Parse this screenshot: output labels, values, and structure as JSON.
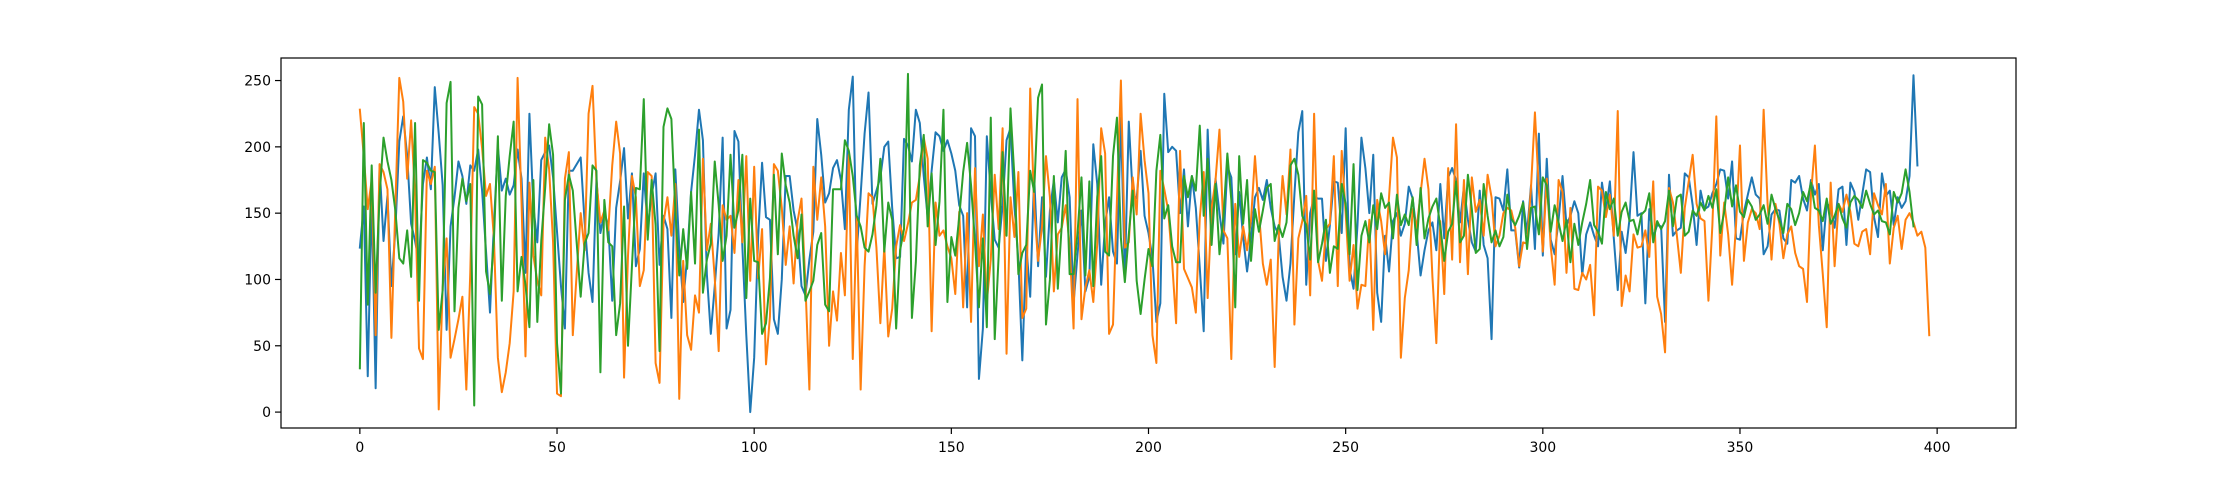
{
  "chart_data": {
    "type": "line",
    "title": "",
    "xlabel": "",
    "ylabel": "",
    "xlim": [
      -20,
      420
    ],
    "ylim": [
      -12,
      267
    ],
    "grid": false,
    "legend": "none",
    "x_ticks": [
      0,
      50,
      100,
      150,
      200,
      250,
      300,
      350,
      400
    ],
    "y_ticks": [
      0,
      50,
      100,
      150,
      200,
      250
    ],
    "x": {
      "start": 0,
      "end": 399,
      "step": 1
    },
    "series": [
      {
        "color": "#1f77b4",
        "values": [
          124,
          155,
          27,
          162,
          18,
          186,
          129,
          163,
          95,
          137,
          204,
          223,
          193,
          142,
          129,
          113,
          172,
          192,
          168,
          245,
          210,
          171,
          62,
          140,
          162,
          189,
          178,
          157,
          186,
          182,
          198,
          167,
          121,
          75,
          142,
          200,
          167,
          176,
          164,
          171,
          198,
          176,
          105,
          225,
          155,
          128,
          190,
          196,
          201,
          177,
          136,
          95,
          63,
          182,
          182,
          187,
          192,
          143,
          105,
          83,
          176,
          135,
          150,
          141,
          84,
          154,
          174,
          199,
          146,
          180,
          110,
          123,
          180,
          139,
          164,
          180,
          111,
          148,
          138,
          71,
          183,
          124,
          83,
          117,
          166,
          194,
          228,
          205,
          104,
          59,
          95,
          135,
          207,
          63,
          77,
          212,
          204,
          125,
          58,
          0,
          41,
          132,
          188,
          147,
          145,
          70,
          59,
          100,
          178,
          178,
          152,
          137,
          95,
          88,
          115,
          136,
          221,
          194,
          158,
          165,
          184,
          190,
          175,
          138,
          228,
          253,
          120,
          164,
          210,
          241,
          157,
          167,
          177,
          200,
          204,
          154,
          116,
          117,
          206,
          201,
          189,
          228,
          218,
          178,
          147,
          182,
          211,
          208,
          197,
          205,
          195,
          182,
          156,
          148,
          79,
          214,
          208,
          25,
          63,
          208,
          165,
          130,
          124,
          156,
          205,
          214,
          155,
          114,
          39,
          126,
          87,
          178,
          110,
          162,
          102,
          152,
          175,
          143,
          177,
          183,
          162,
          82,
          119,
          152,
          91,
          102,
          202,
          172,
          96,
          142,
          162,
          121,
          112,
          222,
          102,
          219,
          164,
          161,
          197,
          148,
          135,
          116,
          68,
          82,
          240,
          196,
          200,
          197,
          150,
          183,
          140,
          178,
          154,
          109,
          61,
          213,
          140,
          176,
          150,
          127,
          185,
          177,
          119,
          166,
          132,
          106,
          131,
          162,
          169,
          160,
          175,
          154,
          140,
          134,
          102,
          84,
          112,
          164,
          211,
          227,
          96,
          150,
          162,
          161,
          161,
          114,
          141,
          174,
          173,
          135,
          214,
          108,
          93,
          141,
          207,
          184,
          150,
          194,
          90,
          68,
          133,
          106,
          144,
          150,
          133,
          142,
          170,
          161,
          136,
          103,
          122,
          137,
          143,
          122,
          172,
          131,
          177,
          184,
          175,
          143,
          170,
          145,
          128,
          121,
          167,
          126,
          116,
          55,
          162,
          161,
          152,
          183,
          137,
          137,
          109,
          159,
          135,
          171,
          123,
          210,
          118,
          191,
          130,
          119,
          145,
          178,
          141,
          148,
          159,
          150,
          103,
          134,
          143,
          133,
          125,
          173,
          152,
          174,
          131,
          92,
          136,
          120,
          146,
          196,
          148,
          150,
          82,
          153,
          132,
          141,
          140,
          68,
          179,
          133,
          137,
          139,
          180,
          177,
          156,
          126,
          167,
          153,
          155,
          165,
          172,
          183,
          182,
          161,
          189,
          131,
          130,
          151,
          164,
          177,
          164,
          161,
          119,
          125,
          149,
          153,
          152,
          131,
          127,
          175,
          173,
          178,
          161,
          152,
          175,
          164,
          172,
          122,
          158,
          153,
          139,
          168,
          170,
          126,
          173,
          166,
          145,
          164,
          183,
          181,
          147,
          132,
          180,
          163,
          167,
          141,
          162,
          154,
          159,
          178,
          254,
          186
        ]
      },
      {
        "color": "#ff7f0e",
        "values": [
          228,
          193,
          153,
          175,
          58,
          187,
          181,
          168,
          56,
          155,
          252,
          234,
          176,
          220,
          163,
          48,
          40,
          182,
          172,
          185,
          2,
          94,
          131,
          41,
          55,
          70,
          87,
          17,
          105,
          230,
          225,
          199,
          163,
          172,
          131,
          41,
          15,
          30,
          52,
          91,
          252,
          158,
          42,
          173,
          118,
          99,
          88,
          207,
          183,
          128,
          14,
          12,
          176,
          196,
          58,
          105,
          150,
          122,
          225,
          246,
          174,
          143,
          152,
          137,
          186,
          219,
          195,
          26,
          118,
          178,
          162,
          95,
          107,
          181,
          178,
          37,
          22,
          143,
          162,
          133,
          172,
          10,
          114,
          58,
          47,
          88,
          75,
          191,
          122,
          142,
          101,
          46,
          156,
          145,
          148,
          120,
          175,
          128,
          193,
          99,
          185,
          101,
          138,
          36,
          72,
          187,
          182,
          154,
          111,
          140,
          97,
          144,
          161,
          96,
          17,
          185,
          145,
          177,
          140,
          50,
          91,
          69,
          120,
          88,
          194,
          40,
          148,
          17,
          110,
          165,
          162,
          124,
          67,
          125,
          57,
          78,
          125,
          141,
          129,
          142,
          158,
          160,
          178,
          207,
          191,
          61,
          158,
          133,
          137,
          125,
          116,
          89,
          151,
          79,
          150,
          68,
          184,
          110,
          149,
          83,
          115,
          179,
          138,
          214,
          44,
          162,
          132,
          181,
          71,
          78,
          244,
          155,
          114,
          140,
          193,
          162,
          91,
          134,
          139,
          156,
          126,
          63,
          236,
          70,
          94,
          107,
          83,
          127,
          214,
          195,
          59,
          66,
          160,
          250,
          124,
          128,
          177,
          149,
          225,
          190,
          165,
          58,
          37,
          182,
          168,
          152,
          113,
          67,
          197,
          108,
          101,
          94,
          75,
          146,
          181,
          86,
          154,
          175,
          213,
          137,
          131,
          40,
          157,
          117,
          140,
          122,
          145,
          193,
          151,
          112,
          96,
          115,
          34,
          131,
          178,
          149,
          198,
          66,
          131,
          144,
          163,
          88,
          225,
          114,
          99,
          138,
          142,
          193,
          95,
          197,
          150,
          99,
          126,
          78,
          96,
          95,
          145,
          62,
          160,
          144,
          119,
          162,
          207,
          192,
          41,
          86,
          107,
          153,
          139,
          165,
          191,
          168,
          102,
          52,
          144,
          89,
          184,
          115,
          217,
          113,
          175,
          104,
          177,
          151,
          160,
          133,
          179,
          162,
          125,
          133,
          150,
          154,
          152,
          139,
          110,
          128,
          127,
          169,
          226,
          167,
          121,
          176,
          125,
          96,
          175,
          166,
          105,
          154,
          93,
          92,
          105,
          100,
          111,
          73,
          170,
          167,
          147,
          164,
          133,
          227,
          80,
          103,
          91,
          134,
          124,
          125,
          137,
          117,
          174,
          87,
          74,
          45,
          169,
          158,
          133,
          105,
          154,
          174,
          194,
          157,
          146,
          144,
          84,
          141,
          223,
          118,
          158,
          134,
          96,
          141,
          201,
          114,
          143,
          153,
          150,
          138,
          228,
          157,
          115,
          157,
          142,
          116,
          134,
          140,
          120,
          110,
          108,
          83,
          164,
          201,
          141,
          104,
          64,
          173,
          110,
          157,
          151,
          164,
          151,
          127,
          125,
          136,
          138,
          119,
          165,
          156,
          149,
          172,
          112,
          139,
          148,
          123,
          145,
          150,
          143,
          133,
          136,
          124,
          58
        ]
      },
      {
        "color": "#2ca02c",
        "values": [
          33,
          218,
          81,
          186,
          90,
          163,
          207,
          189,
          175,
          152,
          116,
          112,
          137,
          102,
          218,
          84,
          190,
          188,
          182,
          181,
          62,
          92,
          233,
          249,
          76,
          154,
          176,
          159,
          172,
          5,
          238,
          232,
          106,
          89,
          130,
          208,
          84,
          163,
          193,
          219,
          91,
          117,
          96,
          64,
          175,
          68,
          129,
          169,
          217,
          194,
          52,
          14,
          160,
          179,
          167,
          127,
          87,
          127,
          135,
          186,
          182,
          30,
          160,
          128,
          125,
          58,
          82,
          155,
          50,
          110,
          169,
          168,
          236,
          130,
          175,
          141,
          46,
          215,
          229,
          221,
          152,
          103,
          138,
          108,
          166,
          112,
          213,
          90,
          115,
          127,
          189,
          156,
          114,
          133,
          194,
          139,
          152,
          194,
          86,
          161,
          114,
          113,
          59,
          67,
          101,
          179,
          119,
          195,
          171,
          158,
          133,
          116,
          149,
          84,
          91,
          99,
          126,
          135,
          81,
          76,
          168,
          168,
          168,
          205,
          197,
          178,
          148,
          140,
          124,
          121,
          134,
          156,
          191,
          121,
          158,
          145,
          63,
          122,
          138,
          255,
          71,
          113,
          186,
          209,
          140,
          180,
          126,
          159,
          228,
          83,
          132,
          118,
          147,
          181,
          203,
          171,
          128,
          79,
          131,
          64,
          222,
          55,
          118,
          196,
          133,
          229,
          177,
          104,
          120,
          126,
          182,
          166,
          237,
          247,
          66,
          100,
          178,
          93,
          141,
          197,
          104,
          104,
          135,
          177,
          103,
          174,
          95,
          162,
          193,
          121,
          118,
          193,
          222,
          131,
          98,
          134,
          167,
          99,
          74,
          100,
          123,
          110,
          182,
          209,
          146,
          156,
          125,
          113,
          113,
          178,
          162,
          178,
          167,
          216,
          148,
          191,
          126,
          172,
          119,
          147,
          195,
          160,
          79,
          193,
          142,
          175,
          114,
          153,
          136,
          152,
          169,
          172,
          129,
          141,
          132,
          143,
          186,
          191,
          179,
          148,
          141,
          115,
          167,
          113,
          127,
          145,
          105,
          125,
          123,
          172,
          157,
          119,
          187,
          92,
          133,
          144,
          128,
          156,
          138,
          165,
          154,
          158,
          131,
          164,
          141,
          149,
          141,
          162,
          126,
          169,
          131,
          146,
          155,
          161,
          140,
          114,
          136,
          142,
          174,
          128,
          133,
          179,
          153,
          120,
          123,
          172,
          148,
          128,
          137,
          125,
          132,
          164,
          146,
          141,
          148,
          158,
          123,
          154,
          155,
          134,
          177,
          171,
          136,
          156,
          143,
          129,
          145,
          113,
          142,
          126,
          143,
          157,
          175,
          141,
          136,
          127,
          166,
          153,
          161,
          133,
          151,
          158,
          144,
          145,
          134,
          149,
          152,
          165,
          128,
          144,
          138,
          144,
          167,
          140,
          162,
          164,
          133,
          136,
          152,
          148,
          158,
          152,
          163,
          154,
          168,
          135,
          151,
          177,
          155,
          171,
          151,
          147,
          160,
          155,
          145,
          149,
          156,
          142,
          164,
          153,
          145,
          135,
          157,
          153,
          141,
          150,
          166,
          159,
          173,
          154,
          152,
          144,
          161,
          142,
          148,
          157,
          146,
          139,
          158,
          163,
          160,
          154,
          167,
          157,
          149,
          152,
          144,
          143,
          134,
          166,
          158,
          165,
          183,
          166,
          140
        ]
      }
    ]
  }
}
